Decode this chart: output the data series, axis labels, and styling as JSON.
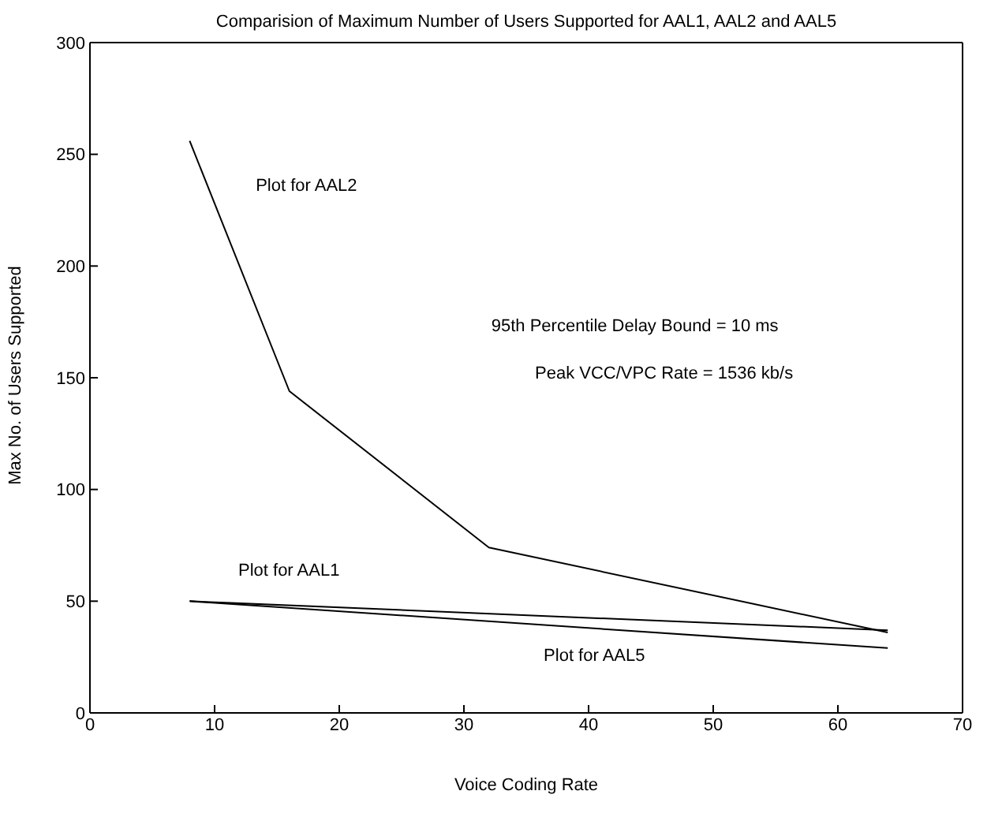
{
  "chart_data": {
    "type": "line",
    "title": "Comparision of Maximum Number of Users Supported for AAL1, AAL2 and AAL5",
    "xlabel": "Voice Coding Rate",
    "ylabel": "Max No. of Users Supported",
    "series": [
      {
        "color": "#000000",
        "x": [
          8,
          16,
          32,
          64
        ],
        "values": [
          256,
          144,
          74,
          36
        ]
      },
      {
        "color": "#000000",
        "x": [
          8,
          64
        ],
        "values": [
          50,
          37
        ]
      },
      {
        "color": "#000000",
        "x": [
          8,
          64
        ],
        "values": [
          50,
          29
        ]
      }
    ],
    "xlim": [
      0,
      70
    ],
    "xticks": [
      0,
      10,
      20,
      30,
      40,
      50,
      60,
      70
    ],
    "ylim": [
      0,
      300
    ],
    "yticks": [
      0,
      50,
      100,
      150,
      200,
      250,
      300
    ],
    "legend": false,
    "marker": "none",
    "line_style": "solid",
    "annotations": [
      "Plot for AAL2",
      "Plot for AAL1",
      "Plot for AAL5",
      "95th Percentile Delay Bound = 10 ms",
      "Peak VCC/VPC Rate = 1536 kb/s"
    ]
  }
}
